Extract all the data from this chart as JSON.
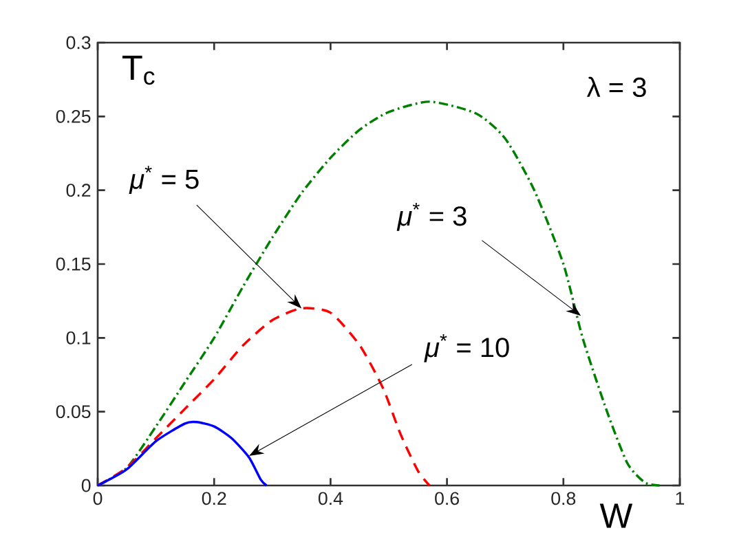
{
  "chart_data": {
    "type": "line",
    "xlabel": "W",
    "ylabel": "T$_{c}$",
    "xlim": [
      0,
      1
    ],
    "ylim": [
      0,
      0.3
    ],
    "xticks": [
      0,
      0.2,
      0.4,
      0.6,
      0.8,
      1
    ],
    "yticks": [
      0,
      0.05,
      0.1,
      0.15,
      0.2,
      0.25,
      0.3
    ],
    "grid": false,
    "annotations": [
      "λ = 3",
      {
        "text": "*μ*$^{*}$ = 5",
        "x": 0.35,
        "y": 0.12
      },
      {
        "text": "*μ*$^{*}$ = 3",
        "x": 0.83,
        "y": 0.115
      },
      {
        "text": "*μ*$^{*}$ = 10",
        "x": 0.26,
        "y": 0.02
      }
    ],
    "series": [
      {
        "color": "#008000",
        "line_style": "dashdot",
        "x": [
          0,
          0.05,
          0.1,
          0.15,
          0.2,
          0.25,
          0.3,
          0.35,
          0.4,
          0.45,
          0.5,
          0.57,
          0.65,
          0.7,
          0.75,
          0.8,
          0.833,
          0.875,
          0.91,
          0.94,
          0.965
        ],
        "values": [
          0,
          0.012,
          0.04,
          0.07,
          0.1,
          0.135,
          0.168,
          0.198,
          0.222,
          0.241,
          0.253,
          0.26,
          0.252,
          0.235,
          0.2,
          0.15,
          0.1,
          0.05,
          0.015,
          0.002,
          0
        ]
      },
      {
        "color": "#ff0000",
        "line_style": "dashed",
        "x": [
          0,
          0.05,
          0.1,
          0.15,
          0.2,
          0.25,
          0.3,
          0.35,
          0.4,
          0.45,
          0.49,
          0.52,
          0.55,
          0.57
        ],
        "values": [
          0,
          0.012,
          0.032,
          0.052,
          0.072,
          0.095,
          0.112,
          0.12,
          0.117,
          0.095,
          0.066,
          0.035,
          0.01,
          0
        ]
      },
      {
        "color": "#0000ff",
        "line_style": "solid",
        "x": [
          0,
          0.05,
          0.1,
          0.15,
          0.17,
          0.2,
          0.23,
          0.26,
          0.28,
          0.29
        ],
        "values": [
          0,
          0.011,
          0.03,
          0.042,
          0.043,
          0.04,
          0.032,
          0.019,
          0.004,
          0
        ]
      }
    ]
  }
}
